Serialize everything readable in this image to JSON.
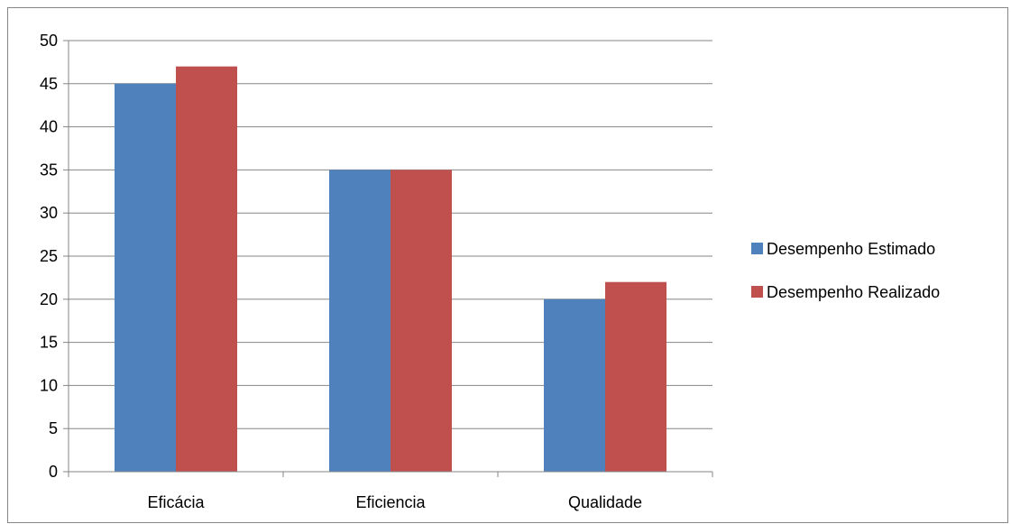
{
  "chart_data": {
    "type": "bar",
    "categories": [
      "Eficácia",
      "Eficiencia",
      "Qualidade"
    ],
    "series": [
      {
        "name": "Desempenho Estimado",
        "values": [
          45,
          35,
          20
        ],
        "color": "#4F81BD"
      },
      {
        "name": "Desempenho Realizado",
        "values": [
          47,
          35,
          22
        ],
        "color": "#C0504D"
      }
    ],
    "yticks": [
      "0",
      "5",
      "10",
      "15",
      "20",
      "25",
      "30",
      "35",
      "40",
      "45",
      "50"
    ],
    "ylim": [
      0,
      50
    ],
    "grid": true,
    "legend_position": "right",
    "title": "",
    "xlabel": "",
    "ylabel": ""
  }
}
